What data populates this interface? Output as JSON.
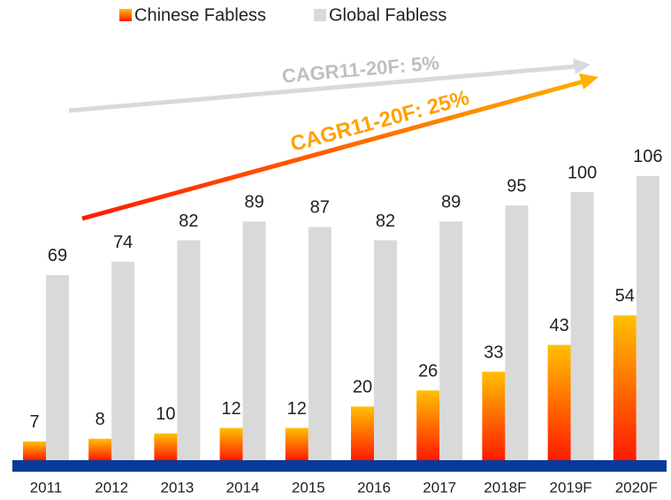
{
  "chart_data": {
    "type": "bar",
    "categories": [
      "2011",
      "2012",
      "2013",
      "2014",
      "2015",
      "2016",
      "2017",
      "2018F",
      "2019F",
      "2020F"
    ],
    "series": [
      {
        "name": "Chinese Fabless",
        "color": "#ffc000",
        "values": [
          7,
          8,
          10,
          12,
          12,
          20,
          26,
          33,
          43,
          54
        ]
      },
      {
        "name": "Global Fabless",
        "color": "#d9d9d9",
        "values": [
          69,
          74,
          82,
          89,
          87,
          82,
          89,
          95,
          100,
          106
        ]
      }
    ],
    "annotations": [
      "CAGR11-20F: 5%",
      "CAGR11-20F: 25%"
    ],
    "legend": "top"
  }
}
